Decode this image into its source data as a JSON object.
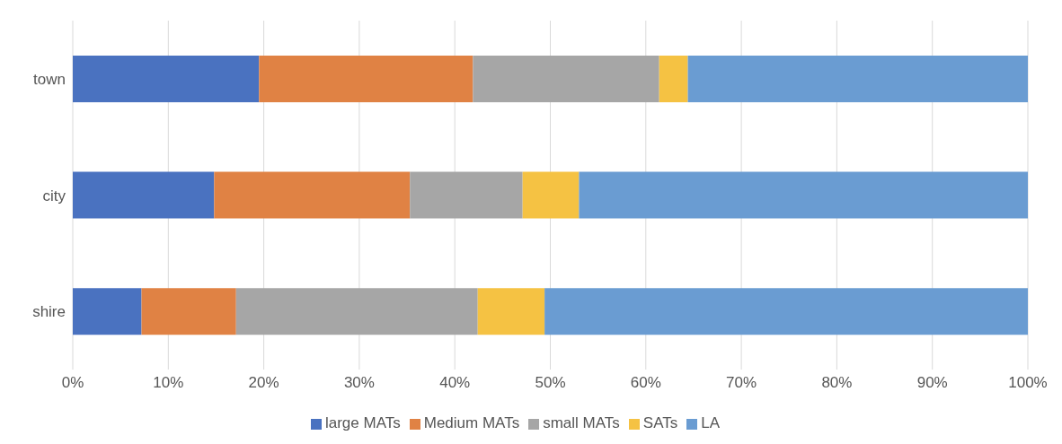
{
  "chart_data": {
    "type": "bar",
    "orientation": "horizontal",
    "stacked": true,
    "categories": [
      "town",
      "city",
      "shire"
    ],
    "series": [
      {
        "name": "large MATs",
        "color": "#4a72c0",
        "values": [
          19.5,
          14.8,
          7.2
        ]
      },
      {
        "name": "Medium MATs",
        "color": "#e08244",
        "values": [
          22.4,
          20.5,
          9.9
        ]
      },
      {
        "name": "small MATs",
        "color": "#a6a6a6",
        "values": [
          19.5,
          11.8,
          25.3
        ]
      },
      {
        "name": "SATs",
        "color": "#f5c243",
        "values": [
          3.0,
          5.9,
          7.0
        ]
      },
      {
        "name": "LA",
        "color": "#6a9cd2",
        "values": [
          35.6,
          47.0,
          50.6
        ]
      }
    ],
    "xlim": [
      0,
      100
    ],
    "xticks": [
      {
        "value": 0,
        "label": "0%"
      },
      {
        "value": 10,
        "label": "10%"
      },
      {
        "value": 20,
        "label": "20%"
      },
      {
        "value": 30,
        "label": "30%"
      },
      {
        "value": 40,
        "label": "40%"
      },
      {
        "value": 50,
        "label": "50%"
      },
      {
        "value": 60,
        "label": "60%"
      },
      {
        "value": 70,
        "label": "70%"
      },
      {
        "value": 80,
        "label": "80%"
      },
      {
        "value": 90,
        "label": "90%"
      },
      {
        "value": 100,
        "label": "100%"
      }
    ],
    "grid": "x",
    "legend": "bottom"
  }
}
